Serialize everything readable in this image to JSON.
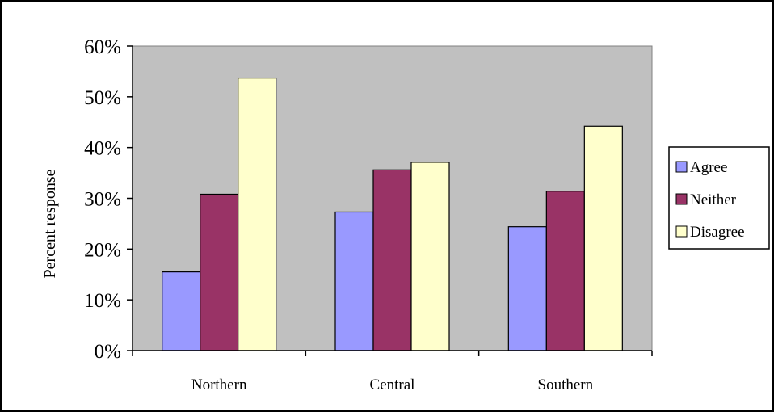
{
  "chart_data": {
    "type": "bar",
    "title": "",
    "xlabel": "",
    "ylabel": "Percent response",
    "categories": [
      "Northern",
      "Central",
      "Southern"
    ],
    "series": [
      {
        "name": "Agree",
        "values": [
          15.5,
          27.3,
          24.4
        ]
      },
      {
        "name": "Neither",
        "values": [
          30.8,
          35.6,
          31.4
        ]
      },
      {
        "name": "Disagree",
        "values": [
          53.7,
          37.1,
          44.2
        ]
      }
    ],
    "ylim": [
      0,
      60
    ],
    "yticks": [
      {
        "value": 0,
        "label": "0%"
      },
      {
        "value": 10,
        "label": "10%"
      },
      {
        "value": 20,
        "label": "20%"
      },
      {
        "value": 30,
        "label": "30%"
      },
      {
        "value": 40,
        "label": "40%"
      },
      {
        "value": 50,
        "label": "50%"
      },
      {
        "value": 60,
        "label": "60%"
      }
    ],
    "grid": false,
    "legend": "right",
    "colors": {
      "plot_background": "#c0c0c0",
      "series": [
        "#9999ff",
        "#993366",
        "#ffffcc"
      ],
      "bar_outline": "#000000"
    }
  }
}
